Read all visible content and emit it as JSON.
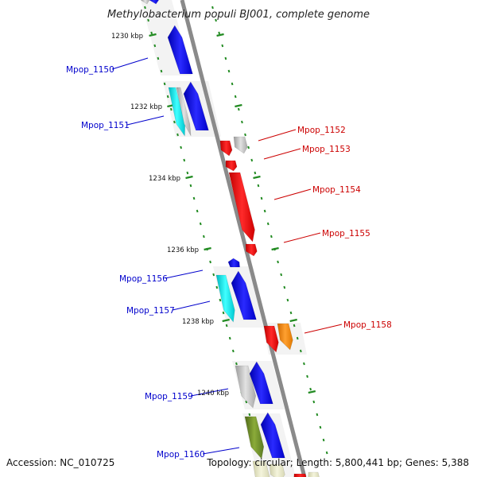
{
  "title": "Methylobacterium populi BJ001, complete genome",
  "footer": {
    "accession": "Accession: NC_010725",
    "summary": "Topology: circular; Length: 5,800,441 bp; Genes: 5,388"
  },
  "colors": {
    "backbone": "#888888",
    "tick": "#228b22",
    "label_left": "#0000cc",
    "label_right": "#cc0000",
    "blue": "#0000ee",
    "cyan": "#00e5ee",
    "grey": "#c0c0c0",
    "red": "#ee0000",
    "orange": "#ff8c00",
    "olive": "#6b8e23"
  },
  "kbp_labels": [
    "1230 kbp",
    "1232 kbp",
    "1234 kbp",
    "1236 kbp",
    "1238 kbp",
    "1240 kbp"
  ],
  "gene_labels_left": [
    "Mpop_1150",
    "Mpop_1151",
    "Mpop_1156",
    "Mpop_1157",
    "Mpop_1159",
    "Mpop_1160"
  ],
  "gene_labels_right": [
    "Mpop_1152",
    "Mpop_1153",
    "Mpop_1154",
    "Mpop_1155",
    "Mpop_1158"
  ]
}
